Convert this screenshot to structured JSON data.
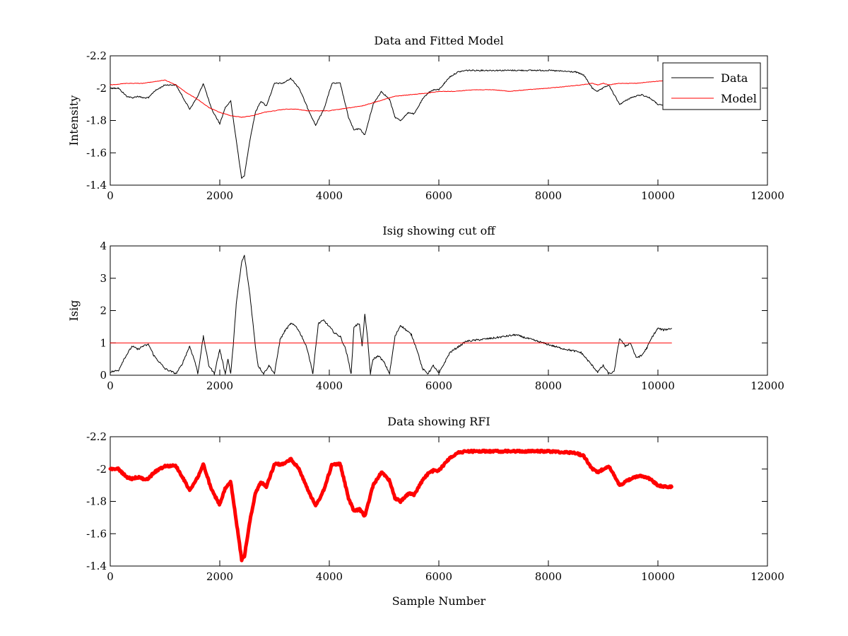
{
  "chart_data": [
    {
      "type": "line",
      "title": "Data and Fitted Model",
      "xlabel": "",
      "ylabel": "Intensity",
      "xlim": [
        0,
        12000
      ],
      "ylim": [
        -2.2,
        -1.4
      ],
      "y_reversed": true,
      "xticks": [
        0,
        2000,
        4000,
        6000,
        8000,
        10000,
        12000
      ],
      "xtick_labels": [
        "0",
        "2000",
        "4000",
        "6000",
        "8000",
        "10000",
        "12000"
      ],
      "yticks": [
        -1.4,
        -1.6,
        -1.8,
        -2,
        -2.2
      ],
      "ytick_labels": [
        "-1.4",
        "-1.6",
        "-1.8",
        "-2",
        "-2.2"
      ],
      "grid": false,
      "legend": {
        "position": "top-right",
        "entries": [
          "Data",
          "Model"
        ]
      },
      "series": [
        {
          "name": "Data",
          "color": "#000000",
          "noise": 0.004,
          "x": [
            0,
            150,
            300,
            400,
            500,
            600,
            700,
            800,
            1000,
            1200,
            1300,
            1450,
            1600,
            1700,
            1850,
            2000,
            2100,
            2200,
            2300,
            2400,
            2450,
            2550,
            2650,
            2750,
            2850,
            3000,
            3150,
            3300,
            3450,
            3600,
            3750,
            3900,
            4050,
            4200,
            4350,
            4450,
            4550,
            4650,
            4800,
            4950,
            5100,
            5200,
            5300,
            5450,
            5550,
            5700,
            5800,
            5900,
            6000,
            6100,
            6200,
            6350,
            6500,
            7000,
            7500,
            8000,
            8500,
            8650,
            8800,
            8900,
            9100,
            9300,
            9500,
            9700,
            9850,
            10000,
            10100,
            10250
          ],
          "y": [
            -2.0,
            -2.0,
            -1.95,
            -1.94,
            -1.95,
            -1.94,
            -1.94,
            -1.98,
            -2.02,
            -2.02,
            -1.96,
            -1.87,
            -1.95,
            -2.03,
            -1.87,
            -1.78,
            -1.88,
            -1.92,
            -1.68,
            -1.44,
            -1.46,
            -1.68,
            -1.85,
            -1.92,
            -1.89,
            -2.03,
            -2.03,
            -2.06,
            -2.0,
            -1.88,
            -1.77,
            -1.87,
            -2.03,
            -2.03,
            -1.82,
            -1.74,
            -1.75,
            -1.71,
            -1.9,
            -1.98,
            -1.93,
            -1.82,
            -1.8,
            -1.85,
            -1.84,
            -1.93,
            -1.97,
            -1.99,
            -1.99,
            -2.03,
            -2.07,
            -2.1,
            -2.11,
            -2.11,
            -2.11,
            -2.11,
            -2.1,
            -2.08,
            -2.0,
            -1.98,
            -2.02,
            -1.9,
            -1.94,
            -1.96,
            -1.94,
            -1.9,
            -1.89,
            -1.89
          ]
        },
        {
          "name": "Model",
          "color": "#ff0000",
          "noise": 0.0015,
          "x": [
            0,
            300,
            600,
            800,
            1000,
            1200,
            1400,
            1600,
            1800,
            2000,
            2200,
            2400,
            2600,
            2800,
            3000,
            3200,
            3400,
            3600,
            3800,
            4000,
            4200,
            4400,
            4600,
            4800,
            5000,
            5200,
            5500,
            5800,
            6000,
            6300,
            6600,
            7000,
            7300,
            7600,
            8000,
            8300,
            8600,
            8800,
            8900,
            9000,
            9100,
            9300,
            9600,
            9900,
            10250
          ],
          "y": [
            -2.02,
            -2.03,
            -2.03,
            -2.04,
            -2.05,
            -2.02,
            -1.97,
            -1.93,
            -1.88,
            -1.85,
            -1.83,
            -1.82,
            -1.83,
            -1.85,
            -1.86,
            -1.87,
            -1.87,
            -1.86,
            -1.86,
            -1.86,
            -1.87,
            -1.88,
            -1.89,
            -1.91,
            -1.93,
            -1.95,
            -1.96,
            -1.97,
            -1.98,
            -1.98,
            -1.99,
            -1.99,
            -1.98,
            -1.99,
            -2.0,
            -2.01,
            -2.02,
            -2.03,
            -2.02,
            -2.03,
            -2.02,
            -2.03,
            -2.03,
            -2.04,
            -2.05
          ]
        }
      ]
    },
    {
      "type": "line",
      "title": "Isig showing cut off",
      "xlabel": "",
      "ylabel": "Isig",
      "xlim": [
        0,
        12000
      ],
      "ylim": [
        0,
        4
      ],
      "y_reversed": false,
      "xticks": [
        0,
        2000,
        4000,
        6000,
        8000,
        10000,
        12000
      ],
      "xtick_labels": [
        "0",
        "2000",
        "4000",
        "6000",
        "8000",
        "10000",
        "12000"
      ],
      "yticks": [
        0,
        1,
        2,
        3,
        4
      ],
      "ytick_labels": [
        "0",
        "1",
        "2",
        "3",
        "4"
      ],
      "grid": false,
      "series": [
        {
          "color": "#000000",
          "noise": 0.03,
          "x": [
            0,
            150,
            250,
            400,
            500,
            600,
            700,
            800,
            1000,
            1200,
            1300,
            1450,
            1550,
            1600,
            1700,
            1800,
            1900,
            2000,
            2100,
            2150,
            2200,
            2250,
            2300,
            2400,
            2450,
            2550,
            2650,
            2700,
            2800,
            2900,
            3000,
            3100,
            3200,
            3300,
            3400,
            3500,
            3600,
            3700,
            3800,
            3900,
            4000,
            4100,
            4200,
            4300,
            4400,
            4450,
            4550,
            4600,
            4650,
            4700,
            4750,
            4800,
            4900,
            5000,
            5100,
            5200,
            5300,
            5400,
            5500,
            5600,
            5700,
            5800,
            5900,
            6000,
            6200,
            6500,
            7000,
            7400,
            7800,
            8200,
            8600,
            8800,
            8900,
            9000,
            9100,
            9200,
            9300,
            9400,
            9500,
            9600,
            9700,
            9800,
            9900,
            10000,
            10100,
            10250
          ],
          "y": [
            0.1,
            0.15,
            0.5,
            0.9,
            0.8,
            0.9,
            0.95,
            0.6,
            0.2,
            0.05,
            0.3,
            0.9,
            0.4,
            0.05,
            1.2,
            0.3,
            0.05,
            0.8,
            0.05,
            0.5,
            0.05,
            1.0,
            2.2,
            3.5,
            3.7,
            2.5,
            0.9,
            0.3,
            0.05,
            0.3,
            0.05,
            1.1,
            1.4,
            1.6,
            1.5,
            1.2,
            0.8,
            0.05,
            1.6,
            1.7,
            1.5,
            1.3,
            1.2,
            0.8,
            0.05,
            1.5,
            1.6,
            0.9,
            1.9,
            1.1,
            0.05,
            0.5,
            0.6,
            0.4,
            0.05,
            1.2,
            1.55,
            1.4,
            1.25,
            0.8,
            0.2,
            0.05,
            0.3,
            0.05,
            0.7,
            1.05,
            1.15,
            1.25,
            1.05,
            0.85,
            0.7,
            0.3,
            0.1,
            0.3,
            0.05,
            0.1,
            1.15,
            0.9,
            1.0,
            0.55,
            0.6,
            0.85,
            1.2,
            1.45,
            1.4,
            1.45
          ]
        },
        {
          "color": "#ff0000",
          "noise": 0,
          "x": [
            0,
            10250
          ],
          "y": [
            1,
            1
          ]
        }
      ]
    },
    {
      "type": "line",
      "title": "Data showing RFI",
      "xlabel": "Sample Number",
      "ylabel": "",
      "xlim": [
        0,
        12000
      ],
      "ylim": [
        -2.2,
        -1.4
      ],
      "y_reversed": true,
      "xticks": [
        0,
        2000,
        4000,
        6000,
        8000,
        10000,
        12000
      ],
      "xtick_labels": [
        "0",
        "2000",
        "4000",
        "6000",
        "8000",
        "10000",
        "12000"
      ],
      "yticks": [
        -1.4,
        -1.6,
        -1.8,
        -2,
        -2.2
      ],
      "ytick_labels": [
        "-1.4",
        "-1.6",
        "-1.8",
        "-2",
        "-2.2"
      ],
      "grid": false,
      "series": [
        {
          "color": "#ff0000",
          "thick": true,
          "noise": 0.006,
          "x": [
            0,
            150,
            300,
            400,
            500,
            600,
            700,
            800,
            1000,
            1200,
            1300,
            1450,
            1600,
            1700,
            1850,
            2000,
            2100,
            2200,
            2300,
            2400,
            2450,
            2550,
            2650,
            2750,
            2850,
            3000,
            3150,
            3300,
            3450,
            3600,
            3750,
            3900,
            4050,
            4200,
            4350,
            4450,
            4550,
            4650,
            4800,
            4950,
            5100,
            5200,
            5300,
            5450,
            5550,
            5700,
            5800,
            5900,
            6000,
            6100,
            6200,
            6350,
            6500,
            7000,
            7500,
            8000,
            8500,
            8650,
            8800,
            8900,
            9100,
            9300,
            9500,
            9700,
            9850,
            10000,
            10100,
            10250
          ],
          "y": [
            -2.0,
            -2.0,
            -1.95,
            -1.94,
            -1.95,
            -1.94,
            -1.94,
            -1.98,
            -2.02,
            -2.02,
            -1.96,
            -1.87,
            -1.95,
            -2.03,
            -1.87,
            -1.78,
            -1.88,
            -1.92,
            -1.68,
            -1.44,
            -1.46,
            -1.68,
            -1.85,
            -1.92,
            -1.89,
            -2.03,
            -2.03,
            -2.06,
            -2.0,
            -1.88,
            -1.77,
            -1.87,
            -2.03,
            -2.03,
            -1.82,
            -1.74,
            -1.75,
            -1.71,
            -1.9,
            -1.98,
            -1.93,
            -1.82,
            -1.8,
            -1.85,
            -1.84,
            -1.93,
            -1.97,
            -1.99,
            -1.99,
            -2.03,
            -2.07,
            -2.1,
            -2.11,
            -2.11,
            -2.11,
            -2.11,
            -2.1,
            -2.08,
            -2.0,
            -1.98,
            -2.02,
            -1.9,
            -1.94,
            -1.96,
            -1.94,
            -1.9,
            -1.89,
            -1.89
          ]
        }
      ]
    }
  ]
}
